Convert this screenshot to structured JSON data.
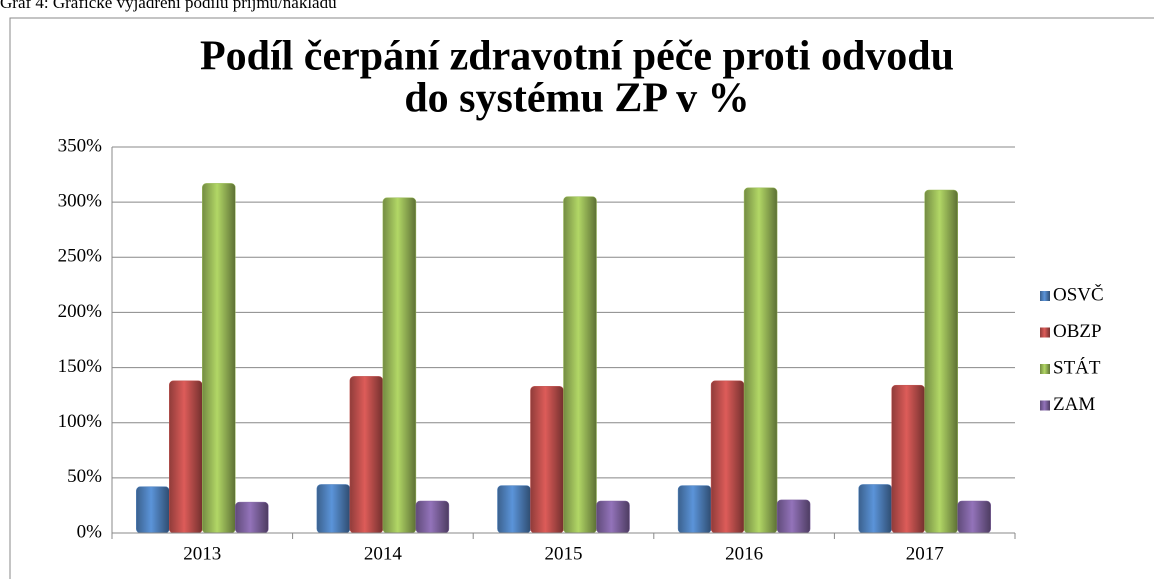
{
  "caption": "Graf 4: Grafické vyjádření podílu příjmů/nákladů",
  "chart_data": {
    "type": "bar",
    "title": [
      "Podíl čerpání zdravotní péče proti odvodu",
      "do systému ZP v %"
    ],
    "categories": [
      "2013",
      "2014",
      "2015",
      "2016",
      "2017"
    ],
    "series": [
      {
        "name": "OSVČ",
        "color": "#4f81bd",
        "values": [
          42,
          44,
          43,
          43,
          44
        ]
      },
      {
        "name": "OBZP",
        "color": "#c0504d",
        "values": [
          138,
          142,
          133,
          138,
          134
        ]
      },
      {
        "name": "STÁT",
        "color": "#9bbb59",
        "values": [
          317,
          304,
          305,
          313,
          311
        ]
      },
      {
        "name": "ZAM",
        "color": "#8064a2",
        "values": [
          28,
          29,
          29,
          30,
          29
        ]
      }
    ],
    "ylim": [
      0,
      350
    ],
    "yticks": [
      {
        "value": 0,
        "label": "0%"
      },
      {
        "value": 50,
        "label": "50%"
      },
      {
        "value": 100,
        "label": "100%"
      },
      {
        "value": 150,
        "label": "150%"
      },
      {
        "value": 200,
        "label": "200%"
      },
      {
        "value": 250,
        "label": "250%"
      },
      {
        "value": 300,
        "label": "300%"
      },
      {
        "value": 350,
        "label": "350%"
      }
    ],
    "grid": true,
    "legend": "right"
  }
}
